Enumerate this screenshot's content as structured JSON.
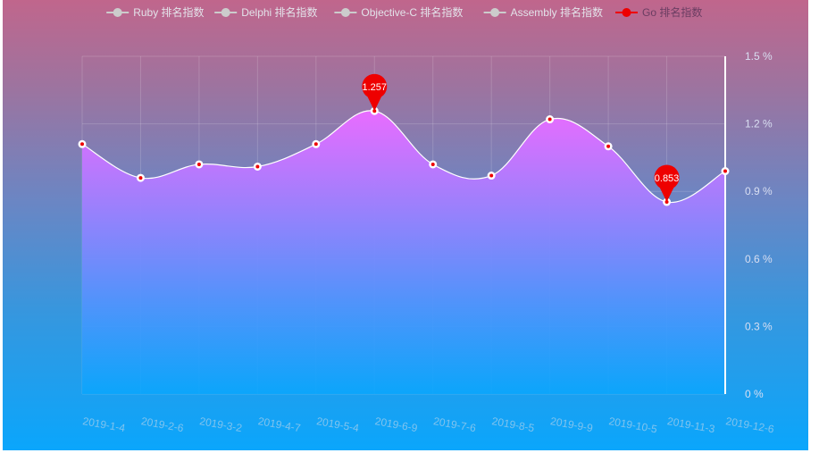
{
  "chart_data": {
    "type": "area",
    "legend": {
      "placement": "top-center",
      "items": [
        {
          "name": "Ruby 排名指数",
          "active": false
        },
        {
          "name": "Delphi 排名指数",
          "active": false
        },
        {
          "name": "Objective-C 排名指数",
          "active": false
        },
        {
          "name": "Assembly 排名指数",
          "active": false
        },
        {
          "name": "Go 排名指数",
          "active": true
        }
      ]
    },
    "categories": [
      "2019-1-4",
      "2019-2-6",
      "2019-3-2",
      "2019-4-7",
      "2019-5-4",
      "2019-6-9",
      "2019-7-6",
      "2019-8-5",
      "2019-9-9",
      "2019-10-5",
      "2019-11-3",
      "2019-12-6"
    ],
    "series": [
      {
        "name": "Go 排名指数",
        "values": [
          1.11,
          0.96,
          1.02,
          1.01,
          1.11,
          1.257,
          1.02,
          0.97,
          1.22,
          1.1,
          0.853,
          0.99
        ]
      }
    ],
    "markers": [
      {
        "label": "1.257",
        "category": "2019-6-9",
        "value": 1.257
      },
      {
        "label": "0.853",
        "category": "2019-11-3",
        "value": 0.853
      }
    ],
    "y_axis": {
      "position": "right",
      "min": 0,
      "max": 1.5,
      "ticks": [
        "0 %",
        "0.3 %",
        "0.6 %",
        "0.9 %",
        "1.2 %",
        "1.5 %"
      ],
      "tick_values": [
        0,
        0.3,
        0.6,
        0.9,
        1.2,
        1.5
      ]
    },
    "grid": true,
    "colors": {
      "area_top": "#e96cff",
      "area_bottom": "#0aa6fc",
      "line": "#ffffff",
      "marker_pin": "#ee0000",
      "legend_active": "#ee0000",
      "legend_inactive": "#cccccc"
    }
  }
}
